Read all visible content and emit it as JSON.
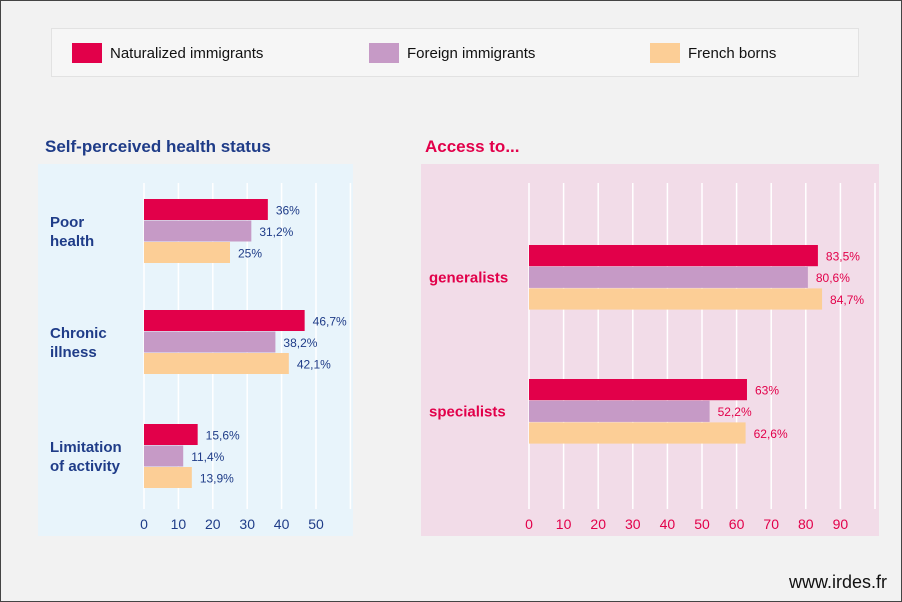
{
  "legend": [
    {
      "label": "Naturalized immigrants",
      "color": "#e2004a"
    },
    {
      "label": "Foreign immigrants",
      "color": "#c69ac6"
    },
    {
      "label": "French borns",
      "color": "#fcce96"
    }
  ],
  "footer": "www.irdes.fr",
  "colors": {
    "left_panel_bg": "#e8f4fb",
    "right_panel_bg": "#f2dce8",
    "left_text": "#1f3c88",
    "right_text": "#e2004a"
  },
  "chart_data": [
    {
      "type": "bar",
      "orientation": "horizontal",
      "title": "Self-perceived health status",
      "categories": [
        "Poor\nhealth",
        "Chronic\nillness",
        "Limitation\nof activity"
      ],
      "series": [
        {
          "name": "Naturalized immigrants",
          "values": [
            36,
            46.7,
            15.6
          ],
          "labels": [
            "36%",
            "46,7%",
            "15,6%"
          ]
        },
        {
          "name": "Foreign immigrants",
          "values": [
            31.2,
            38.2,
            11.4
          ],
          "labels": [
            "31,2%",
            "38,2%",
            "11,4%"
          ]
        },
        {
          "name": "French borns",
          "values": [
            25,
            42.1,
            13.9
          ],
          "labels": [
            "25%",
            "42,1%",
            "13,9%"
          ]
        }
      ],
      "xlim": [
        0,
        60
      ],
      "ticks": [
        "0",
        "10",
        "20",
        "30",
        "40",
        "50"
      ],
      "grid": true
    },
    {
      "type": "bar",
      "orientation": "horizontal",
      "title": "Access to...",
      "categories": [
        "generalists",
        "specialists"
      ],
      "series": [
        {
          "name": "Naturalized immigrants",
          "values": [
            83.5,
            63
          ],
          "labels": [
            "83,5%",
            "63%"
          ]
        },
        {
          "name": "Foreign immigrants",
          "values": [
            80.6,
            52.2
          ],
          "labels": [
            "80,6%",
            "52,2%"
          ]
        },
        {
          "name": "French borns",
          "values": [
            84.7,
            62.6
          ],
          "labels": [
            "84,7%",
            "62,6%"
          ]
        }
      ],
      "xlim": [
        0,
        100
      ],
      "ticks": [
        "0",
        "10",
        "20",
        "30",
        "40",
        "50",
        "60",
        "70",
        "80",
        "90"
      ],
      "grid": true
    }
  ]
}
